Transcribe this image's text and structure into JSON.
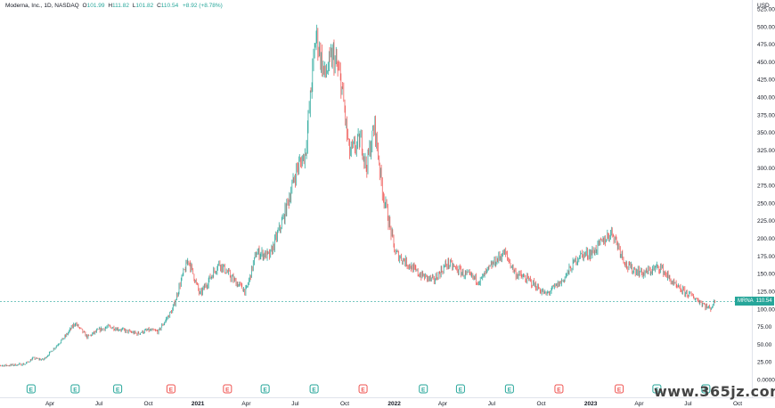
{
  "legend": {
    "symbol": "Moderna, Inc., 1D, NASDAQ",
    "o_label": "O",
    "o": "101.99",
    "h_label": "H",
    "h": "111.82",
    "l_label": "L",
    "l": "101.82",
    "c_label": "C",
    "c": "110.54",
    "change": "+8.92 (+8.78%)"
  },
  "currency": "USD",
  "price_badge": {
    "ticker": "MRNA",
    "value": "110.54"
  },
  "watermark": "www.365jz.com",
  "colors": {
    "up": "#26a69a",
    "down": "#ef5350",
    "earn_up": "#26a69a",
    "earn_down": "#ef5350"
  },
  "chart_data": {
    "type": "line",
    "title": "Moderna, Inc., 1D, NASDAQ",
    "xlabel": "",
    "ylabel": "",
    "ylim": [
      -5,
      525
    ],
    "y_ticks": [
      "525.00",
      "500.00",
      "475.00",
      "450.00",
      "425.00",
      "400.00",
      "375.00",
      "350.00",
      "325.00",
      "300.00",
      "275.00",
      "250.00",
      "225.00",
      "200.00",
      "175.00",
      "150.00",
      "125.00",
      "100.00",
      "75.00",
      "50.00",
      "25.00",
      "0.0000"
    ],
    "x_ticks": [
      {
        "label": "Apr",
        "x": "2020-04-01"
      },
      {
        "label": "Jul",
        "x": "2020-07-01"
      },
      {
        "label": "Oct",
        "x": "2020-10-01"
      },
      {
        "label": "2021",
        "x": "2021-01-01"
      },
      {
        "label": "Apr",
        "x": "2021-04-01"
      },
      {
        "label": "Jul",
        "x": "2021-07-01"
      },
      {
        "label": "Oct",
        "x": "2021-10-01"
      },
      {
        "label": "2022",
        "x": "2022-01-01"
      },
      {
        "label": "Apr",
        "x": "2022-04-01"
      },
      {
        "label": "Jul",
        "x": "2022-07-01"
      },
      {
        "label": "Oct",
        "x": "2022-10-01"
      },
      {
        "label": "2023",
        "x": "2023-01-01"
      },
      {
        "label": "Apr",
        "x": "2023-04-01"
      },
      {
        "label": "Jul",
        "x": "2023-07-01"
      },
      {
        "label": "Oct",
        "x": "2023-10-01"
      }
    ],
    "series": [
      {
        "name": "MRNA",
        "x": [
          "2019-12-15",
          "2020-01-15",
          "2020-02-15",
          "2020-03-01",
          "2020-03-20",
          "2020-04-10",
          "2020-05-01",
          "2020-05-18",
          "2020-06-10",
          "2020-07-01",
          "2020-07-20",
          "2020-08-15",
          "2020-09-10",
          "2020-10-01",
          "2020-10-20",
          "2020-11-16",
          "2020-12-01",
          "2020-12-15",
          "2021-01-05",
          "2021-02-10",
          "2021-03-10",
          "2021-04-01",
          "2021-04-20",
          "2021-05-15",
          "2021-06-10",
          "2021-07-05",
          "2021-07-20",
          "2021-08-09",
          "2021-08-25",
          "2021-09-10",
          "2021-09-25",
          "2021-10-10",
          "2021-11-01",
          "2021-11-10",
          "2021-11-26",
          "2021-12-10",
          "2022-01-03",
          "2022-01-25",
          "2022-02-15",
          "2022-03-15",
          "2022-04-10",
          "2022-05-10",
          "2022-06-10",
          "2022-07-05",
          "2022-07-25",
          "2022-08-15",
          "2022-09-10",
          "2022-10-10",
          "2022-11-10",
          "2022-12-10",
          "2023-01-05",
          "2023-02-10",
          "2023-03-10",
          "2023-04-10",
          "2023-05-10",
          "2023-06-10",
          "2023-07-05",
          "2023-07-25",
          "2023-08-10",
          "2023-08-21"
        ],
        "values": [
          20,
          20,
          22,
          30,
          28,
          45,
          62,
          80,
          60,
          70,
          75,
          70,
          65,
          70,
          68,
          100,
          140,
          170,
          120,
          165,
          140,
          125,
          180,
          175,
          230,
          300,
          320,
          490,
          430,
          460,
          420,
          320,
          340,
          300,
          360,
          270,
          180,
          165,
          150,
          140,
          165,
          150,
          140,
          165,
          180,
          150,
          140,
          120,
          140,
          175,
          180,
          210,
          160,
          150,
          160,
          130,
          120,
          110,
          100,
          110.54
        ]
      }
    ],
    "earnings_markers": [
      {
        "label": "E",
        "x": "2020-02-26",
        "type": "up"
      },
      {
        "label": "E",
        "x": "2020-05-18",
        "type": "up"
      },
      {
        "label": "E",
        "x": "2020-08-05",
        "type": "up"
      },
      {
        "label": "E",
        "x": "2020-11-12",
        "type": "down"
      },
      {
        "label": "E",
        "x": "2021-02-25",
        "type": "down"
      },
      {
        "label": "E",
        "x": "2021-05-06",
        "type": "up"
      },
      {
        "label": "E",
        "x": "2021-08-05",
        "type": "up"
      },
      {
        "label": "E",
        "x": "2021-11-04",
        "type": "down"
      },
      {
        "label": "E",
        "x": "2022-02-24",
        "type": "up"
      },
      {
        "label": "E",
        "x": "2022-05-04",
        "type": "up"
      },
      {
        "label": "E",
        "x": "2022-08-03",
        "type": "up"
      },
      {
        "label": "E",
        "x": "2022-11-03",
        "type": "down"
      },
      {
        "label": "E",
        "x": "2023-02-23",
        "type": "down"
      },
      {
        "label": "E",
        "x": "2023-05-04",
        "type": "up"
      },
      {
        "label": "E",
        "x": "2023-08-03",
        "type": "up"
      }
    ],
    "grid": false,
    "legend_position": "top-left"
  }
}
